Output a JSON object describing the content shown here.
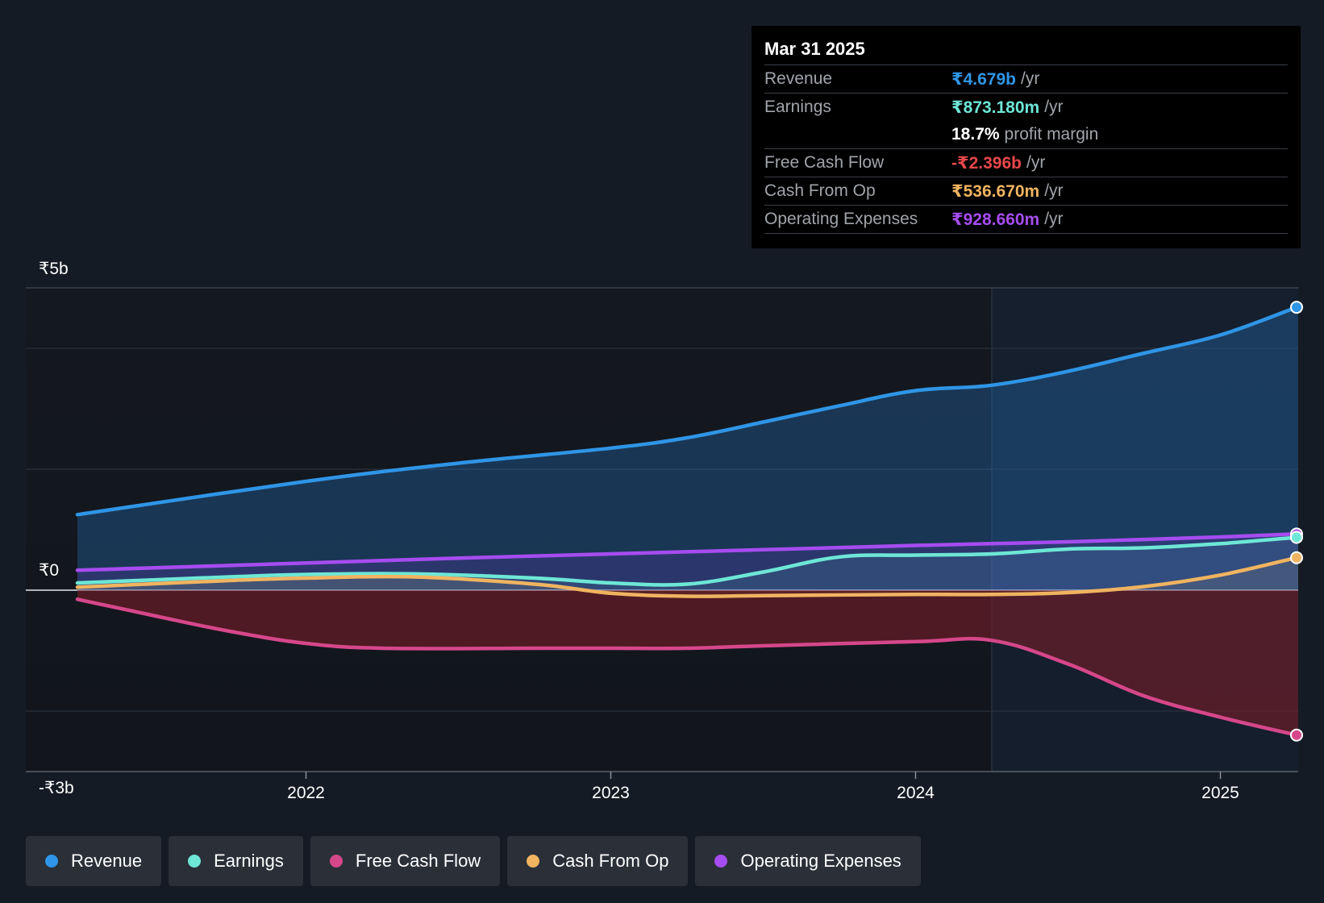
{
  "tooltip": {
    "date": "Mar 31 2025",
    "rows": [
      {
        "label": "Revenue",
        "value": "₹4.679b",
        "unit": "/yr",
        "color": "#2f95e6"
      },
      {
        "label": "Earnings",
        "value": "₹873.180m",
        "unit": "/yr",
        "color": "#6ee7d6"
      },
      {
        "label": "",
        "value": "18.7%",
        "unit": "profit margin",
        "color": "#ffffff"
      },
      {
        "label": "Free Cash Flow",
        "value": "-₹2.396b",
        "unit": "/yr",
        "color": "#e8484a"
      },
      {
        "label": "Cash From Op",
        "value": "₹536.670m",
        "unit": "/yr",
        "color": "#f0b460"
      },
      {
        "label": "Operating Expenses",
        "value": "₹928.660m",
        "unit": "/yr",
        "color": "#a64cf0"
      }
    ]
  },
  "legend": [
    {
      "label": "Revenue",
      "color": "#2f95e6"
    },
    {
      "label": "Earnings",
      "color": "#6ee7d6"
    },
    {
      "label": "Free Cash Flow",
      "color": "#d6478a"
    },
    {
      "label": "Cash From Op",
      "color": "#f0b460"
    },
    {
      "label": "Operating Expenses",
      "color": "#a64cf0"
    }
  ],
  "chart_data": {
    "type": "line",
    "ylim": [
      -3.0,
      5.0
    ],
    "xlim": [
      2021.07,
      2025.25
    ],
    "highlight_start": 2024.25,
    "y_tick_labels": [
      {
        "value": 5,
        "label": "₹5b"
      },
      {
        "value": 0,
        "label": "₹0"
      },
      {
        "value": -3,
        "label": "-₹3b"
      }
    ],
    "gridlines": [
      4,
      2,
      -2
    ],
    "x_ticks": [
      {
        "value": 2022,
        "label": "2022"
      },
      {
        "value": 2023,
        "label": "2023"
      },
      {
        "value": 2024,
        "label": "2024"
      },
      {
        "value": 2025,
        "label": "2025"
      }
    ],
    "series": [
      {
        "name": "Revenue",
        "color": "#2f95e6",
        "fill": "rgba(40,120,200,0.32)",
        "x": [
          2021.25,
          2022.0,
          2022.5,
          2023.0,
          2023.25,
          2023.5,
          2023.75,
          2024.0,
          2024.25,
          2024.5,
          2024.75,
          2025.0,
          2025.25
        ],
        "y": [
          1.25,
          1.8,
          2.1,
          2.35,
          2.52,
          2.78,
          3.05,
          3.3,
          3.39,
          3.62,
          3.92,
          4.22,
          4.679
        ]
      },
      {
        "name": "Operating Expenses",
        "color": "#a64cf0",
        "fill": "rgba(110,60,200,0.22)",
        "x": [
          2021.25,
          2022.0,
          2022.5,
          2023.0,
          2023.5,
          2024.0,
          2024.25,
          2024.5,
          2025.0,
          2025.25
        ],
        "y": [
          0.33,
          0.45,
          0.53,
          0.6,
          0.67,
          0.74,
          0.77,
          0.8,
          0.88,
          0.929
        ]
      },
      {
        "name": "Earnings",
        "color": "#6ee7d6",
        "fill": "rgba(110,231,214,0.10)",
        "x": [
          2021.25,
          2021.75,
          2022.0,
          2022.35,
          2022.75,
          2023.0,
          2023.25,
          2023.5,
          2023.75,
          2024.0,
          2024.25,
          2024.5,
          2024.75,
          2025.0,
          2025.25
        ],
        "y": [
          0.12,
          0.22,
          0.26,
          0.27,
          0.2,
          0.12,
          0.1,
          0.3,
          0.55,
          0.58,
          0.6,
          0.68,
          0.7,
          0.77,
          0.873
        ]
      },
      {
        "name": "Cash From Op",
        "color": "#f0b460",
        "fill": "rgba(240,180,96,0.10)",
        "x": [
          2021.25,
          2021.75,
          2022.0,
          2022.35,
          2022.75,
          2023.0,
          2023.25,
          2023.5,
          2024.0,
          2024.25,
          2024.5,
          2024.75,
          2025.0,
          2025.25
        ],
        "y": [
          0.05,
          0.16,
          0.2,
          0.22,
          0.1,
          -0.05,
          -0.1,
          -0.09,
          -0.07,
          -0.07,
          -0.04,
          0.06,
          0.25,
          0.537
        ]
      },
      {
        "name": "Free Cash Flow",
        "color": "#d6478a",
        "fill": "rgba(130,30,40,0.55)",
        "x": [
          2021.25,
          2021.5,
          2021.75,
          2022.0,
          2022.25,
          2022.75,
          2023.0,
          2023.25,
          2023.5,
          2024.0,
          2024.25,
          2024.5,
          2024.75,
          2025.0,
          2025.25
        ],
        "y": [
          -0.15,
          -0.42,
          -0.68,
          -0.88,
          -0.96,
          -0.96,
          -0.96,
          -0.96,
          -0.92,
          -0.85,
          -0.83,
          -1.22,
          -1.75,
          -2.1,
          -2.396
        ]
      }
    ]
  }
}
